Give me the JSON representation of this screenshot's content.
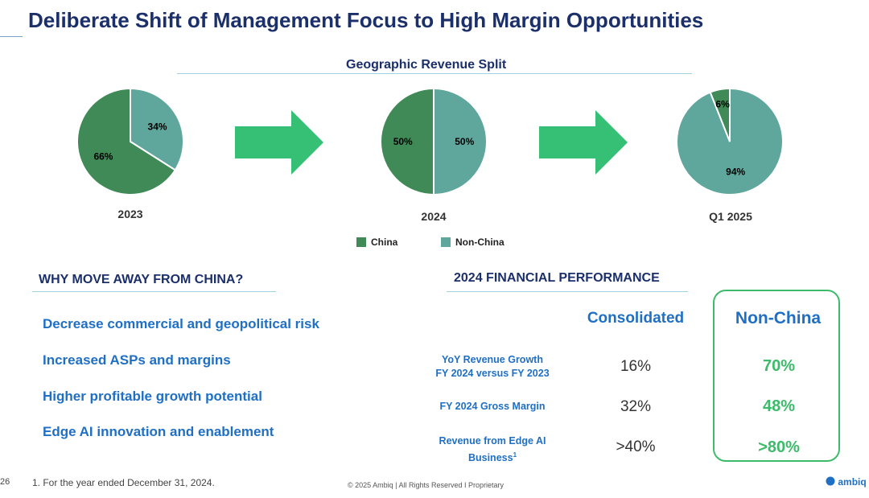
{
  "title": "Deliberate Shift of Management Focus to High Margin Opportunities",
  "geo_section_title": "Geographic Revenue Split",
  "colors": {
    "china": "#3f8a57",
    "non_china": "#5fa69c",
    "arrow": "#35c075",
    "accent_blue": "#1f6fc4",
    "navy": "#1b2f6b",
    "green": "#3dbb6a"
  },
  "chart_data": [
    {
      "type": "pie",
      "title": "2023",
      "labels": [
        "China",
        "Non-China"
      ],
      "values": [
        66,
        34
      ],
      "value_labels": [
        "66%",
        "34%"
      ]
    },
    {
      "type": "pie",
      "title": "2024",
      "labels": [
        "China",
        "Non-China"
      ],
      "values": [
        50,
        50
      ],
      "value_labels": [
        "50%",
        "50%"
      ]
    },
    {
      "type": "pie",
      "title": "Q1 2025",
      "labels": [
        "China",
        "Non-China"
      ],
      "values": [
        6,
        94
      ],
      "value_labels": [
        "6%",
        "94%"
      ]
    }
  ],
  "legend": {
    "china": "China",
    "non_china": "Non-China"
  },
  "why": {
    "heading": "WHY MOVE AWAY FROM CHINA?",
    "reasons": [
      "Decrease commercial and geopolitical risk",
      "Increased ASPs and margins",
      "Higher profitable growth potential",
      "Edge AI innovation and enablement"
    ]
  },
  "financial": {
    "heading": "2024 FINANCIAL PERFORMANCE",
    "col_consolidated": "Consolidated",
    "col_non_china": "Non-China",
    "rows": [
      {
        "label_line1": "YoY Revenue Growth",
        "label_line2": "FY 2024 versus FY 2023",
        "consolidated": "16%",
        "non_china": "70%"
      },
      {
        "label_line1": "FY 2024 Gross Margin",
        "label_line2": "",
        "consolidated": "32%",
        "non_china": "48%"
      },
      {
        "label_line1": "Revenue from Edge AI",
        "label_line2": "Business",
        "sup": "1",
        "consolidated": ">40%",
        "non_china": ">80%"
      }
    ]
  },
  "footer": {
    "page_number": "26",
    "footnote": "1. For the year ended December 31, 2024.",
    "copyright": "© 2025 Ambiq  |  All Rights Reserved I Proprietary",
    "logo": "ambiq"
  }
}
